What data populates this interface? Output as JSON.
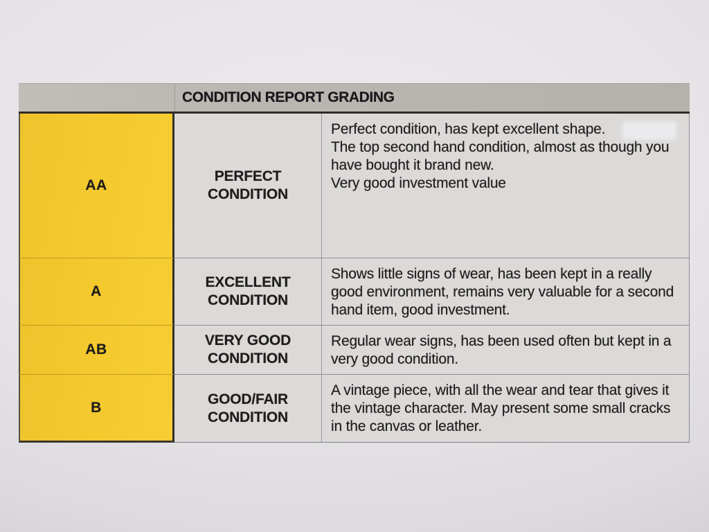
{
  "table": {
    "title": "CONDITION REPORT GRADING",
    "rows": [
      {
        "grade": "AA",
        "label": "PERFECT CONDITION",
        "paragraphs": [
          "Perfect condition, has kept excellent shape.",
          "The top second hand condition, almost as though you have bought it brand new.",
          "Very good investment value"
        ]
      },
      {
        "grade": "A",
        "label": "EXCELLENT CONDITION",
        "paragraphs": [
          "Shows little signs of wear, has been kept in a really good environment, remains very valuable for a second hand item, good investment."
        ]
      },
      {
        "grade": "AB",
        "label": "VERY GOOD CONDITION",
        "paragraphs": [
          "Regular wear signs, has been used often but kept in a very good condition."
        ]
      },
      {
        "grade": "B",
        "label": "GOOD/FAIR CONDITION",
        "paragraphs": [
          "A vintage piece, with all the wear and tear that gives it the vintage character. May present some small cracks in the canvas or leather."
        ]
      }
    ],
    "colors": {
      "grade_column_yellow": "#f3c92e",
      "header_gray": "#bab6b1",
      "cell_gray": "#dcdad9",
      "paper": "#e6e4e7",
      "dark_border": "#2f2c26",
      "text": "#1d1c1a"
    }
  }
}
